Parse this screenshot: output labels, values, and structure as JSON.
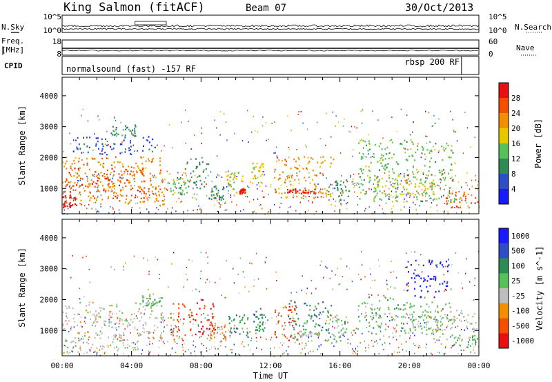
{
  "header": {
    "station": "King Salmon (fitACF)",
    "beam": "Beam 07",
    "date": "30/Oct/2013"
  },
  "strip_nsky": {
    "left_label": "N.Sky",
    "right_label": "N.Search",
    "left_ticks": [
      "10^5",
      "10^0"
    ],
    "right_ticks": [
      "10^5",
      "10^0"
    ]
  },
  "strip_freq": {
    "left_label_1": "Freq.",
    "left_label_2": "[MHz]",
    "right_label": "Nave",
    "left_ticks": [
      "18",
      "8"
    ],
    "right_ticks": [
      "60",
      "0"
    ]
  },
  "strip_cpid": {
    "label": "CPID",
    "mode_1": "normalsound (fast) -157 RF",
    "mode_2": "rbsp 200 RF",
    "mode_change_hour": 23.0
  },
  "colors": {
    "power": [
      "#1a1aff",
      "#2e4ec8",
      "#2f8a54",
      "#58c058",
      "#e6c800",
      "#f09000",
      "#f05000",
      "#e81010"
    ],
    "velocity": [
      "#1a1aff",
      "#2e4ec8",
      "#2f8a54",
      "#58c058",
      "#bebebe",
      "#f09000",
      "#f05000",
      "#e81010"
    ]
  },
  "chart_data": [
    {
      "type": "heatmap",
      "name": "power",
      "ylabel": "Slant Range [km]",
      "xlim": [
        0,
        24
      ],
      "ylim": [
        180,
        4600
      ],
      "yticks": [
        "1000",
        "2000",
        "3000",
        "4000"
      ],
      "colorbar_label": "Power [dB]",
      "colorbar_ticks": [
        "4",
        "8",
        "12",
        "16",
        "20",
        "24",
        "28"
      ],
      "colorbar_range": [
        0,
        32
      ],
      "blobs": [
        {
          "t0": 0.0,
          "t1": 5.9,
          "r0": 500,
          "r1": 2050,
          "v": 20
        },
        {
          "t0": 0.2,
          "t1": 4.8,
          "r0": 700,
          "r1": 1700,
          "v": 27
        },
        {
          "t0": 0.0,
          "t1": 0.8,
          "r0": 400,
          "r1": 800,
          "v": 30
        },
        {
          "t0": 0.6,
          "t1": 5.5,
          "r0": 2100,
          "r1": 2700,
          "v": 6
        },
        {
          "t0": 2.8,
          "t1": 4.2,
          "r0": 2700,
          "r1": 3100,
          "v": 8
        },
        {
          "t0": 6.1,
          "t1": 7.2,
          "r0": 800,
          "r1": 1350,
          "v": 13
        },
        {
          "t0": 7.0,
          "t1": 8.4,
          "r0": 1000,
          "r1": 2000,
          "v": 10
        },
        {
          "t0": 8.4,
          "t1": 9.3,
          "r0": 650,
          "r1": 1100,
          "v": 9
        },
        {
          "t0": 9.4,
          "t1": 10.6,
          "r0": 800,
          "r1": 1600,
          "v": 17
        },
        {
          "t0": 10.2,
          "t1": 10.5,
          "r0": 850,
          "r1": 1000,
          "v": 30
        },
        {
          "t0": 10.9,
          "t1": 11.6,
          "r0": 1200,
          "r1": 1850,
          "v": 16
        },
        {
          "t0": 12.2,
          "t1": 15.6,
          "r0": 700,
          "r1": 2050,
          "v": 22
        },
        {
          "t0": 12.9,
          "t1": 14.7,
          "r0": 850,
          "r1": 1000,
          "v": 30
        },
        {
          "t0": 15.3,
          "t1": 16.5,
          "r0": 600,
          "r1": 1300,
          "v": 9
        },
        {
          "t0": 17.0,
          "t1": 22.6,
          "r0": 600,
          "r1": 2600,
          "v": 13
        },
        {
          "t0": 17.8,
          "t1": 21.4,
          "r0": 800,
          "r1": 1600,
          "v": 16
        },
        {
          "t0": 22.0,
          "t1": 24.0,
          "r0": 400,
          "r1": 900,
          "v": 25
        }
      ]
    },
    {
      "type": "heatmap",
      "name": "velocity",
      "ylabel": "Slant Range [km]",
      "xlabel": "Time UT",
      "xlim": [
        0,
        24
      ],
      "ylim": [
        180,
        4600
      ],
      "xticks": [
        "00:00",
        "04:00",
        "08:00",
        "12:00",
        "16:00",
        "20:00",
        "00:00"
      ],
      "yticks": [
        "1000",
        "2000",
        "3000",
        "4000"
      ],
      "colorbar_label": "Velocity [m s^-1]",
      "colorbar_ticks": [
        "1000",
        "500",
        "100",
        "25",
        "-25",
        "-100",
        "-500",
        "-1000"
      ],
      "blobs": [
        {
          "t0": 0.0,
          "t1": 5.8,
          "r0": 700,
          "r1": 1950,
          "v": 4
        },
        {
          "t0": 0.0,
          "t1": 4.6,
          "r0": 300,
          "r1": 700,
          "v": 4
        },
        {
          "t0": 4.6,
          "t1": 5.8,
          "r0": 1800,
          "r1": 2150,
          "v": 3
        },
        {
          "t0": 6.2,
          "t1": 7.4,
          "r0": 700,
          "r1": 1900,
          "v": 6
        },
        {
          "t0": 7.4,
          "t1": 8.8,
          "r0": 800,
          "r1": 2050,
          "v": 7
        },
        {
          "t0": 8.5,
          "t1": 9.4,
          "r0": 650,
          "r1": 1200,
          "v": 5
        },
        {
          "t0": 9.5,
          "t1": 10.7,
          "r0": 800,
          "r1": 1600,
          "v": 2
        },
        {
          "t0": 11.0,
          "t1": 11.6,
          "r0": 1000,
          "r1": 1800,
          "v": 2
        },
        {
          "t0": 12.2,
          "t1": 13.6,
          "r0": 700,
          "r1": 1950,
          "v": 6
        },
        {
          "t0": 13.0,
          "t1": 15.5,
          "r0": 800,
          "r1": 2000,
          "v": 2
        },
        {
          "t0": 13.6,
          "t1": 14.8,
          "r0": 850,
          "r1": 1000,
          "v": 4
        },
        {
          "t0": 15.4,
          "t1": 16.4,
          "r0": 600,
          "r1": 1400,
          "v": 3
        },
        {
          "t0": 17.0,
          "t1": 22.5,
          "r0": 900,
          "r1": 2100,
          "v": 3
        },
        {
          "t0": 20.0,
          "t1": 24.0,
          "r0": 1000,
          "r1": 1700,
          "v": 4
        },
        {
          "t0": 19.8,
          "t1": 22.3,
          "r0": 2100,
          "r1": 3300,
          "v": 0
        },
        {
          "t0": 22.4,
          "t1": 24.0,
          "r0": 450,
          "r1": 900,
          "v": 3
        }
      ]
    }
  ]
}
